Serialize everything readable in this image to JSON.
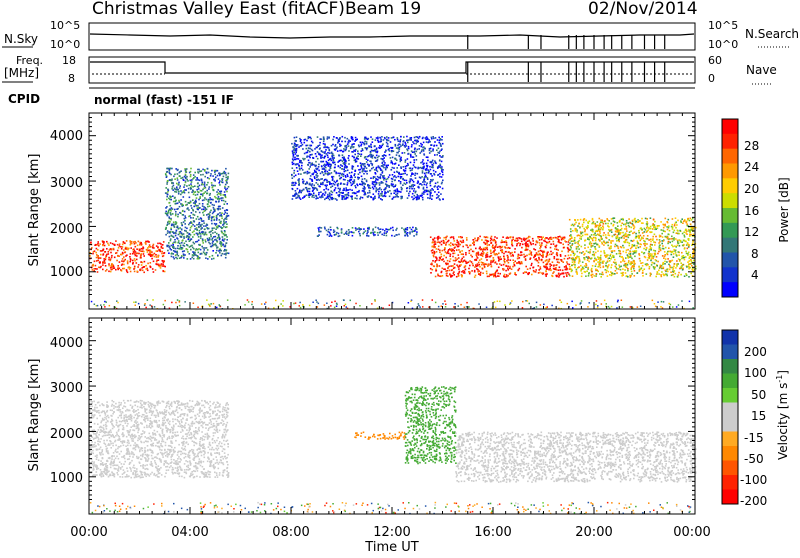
{
  "header": {
    "title": "Christmas Valley East (fitACF)",
    "beam": "Beam 19",
    "date": "02/Nov/2014"
  },
  "strip_panels": {
    "nsky_label": "N.Sky",
    "nsearch_label": "N.Search",
    "nsky_ticks": [
      "10^5",
      "10^0"
    ],
    "nsearch_ticks": [
      "10^5",
      "10^0"
    ],
    "freq_label_line1": "Freq.",
    "freq_label_line2": "[MHz]",
    "freq_ticks": [
      "18",
      "8"
    ],
    "nave_label": "Nave",
    "nave_ticks": [
      "60",
      "0"
    ],
    "cpid_label": "CPID",
    "cpid_text": "normal (fast)  -151  IF"
  },
  "panels": {
    "power_ylabel": "Slant Range [km]",
    "velocity_ylabel": "Slant Range [km]",
    "xlabel": "Time UT",
    "y_ticks": [
      "4000",
      "3000",
      "2000",
      "1000"
    ],
    "x_ticks": [
      "00:00",
      "04:00",
      "08:00",
      "12:00",
      "16:00",
      "20:00",
      "00:00"
    ]
  },
  "colorbars": {
    "power_label": "Power [dB]",
    "power_ticks": [
      "28",
      "24",
      "20",
      "16",
      "12",
      "8",
      "4"
    ],
    "power_colors": [
      "#ff0000",
      "#ff2200",
      "#ff6600",
      "#ff9900",
      "#ffcc00",
      "#ccdd00",
      "#66bb33",
      "#339955",
      "#337777",
      "#2255aa",
      "#1133cc",
      "#0000ff"
    ],
    "velocity_label_main": "Velocity [m s",
    "velocity_label_sup": "-1",
    "velocity_label_end": "]",
    "velocity_ticks": [
      "200",
      "100",
      "50",
      "15",
      "-15",
      "-50",
      "-100",
      "-200"
    ],
    "velocity_colors": [
      "#1133aa",
      "#2255aa",
      "#338844",
      "#44aa33",
      "#66cc33",
      "#cccccc",
      "#cccccc",
      "#ffaa22",
      "#ff8800",
      "#ff5500",
      "#ff2200",
      "#ff0000"
    ]
  },
  "chart_data": [
    {
      "type": "heatmap",
      "title": "Christmas Valley East (fitACF)",
      "ylabel": "Slant Range [km]",
      "colorbar_label": "Power [dB]",
      "x_range": [
        "00:00",
        "00:00"
      ],
      "ylim": [
        180,
        4500
      ],
      "colorbar_ticks": [
        28,
        24,
        20,
        16,
        12,
        8,
        4
      ],
      "regions": [
        {
          "t_start": 0.0,
          "t_end": 3.0,
          "r_start": 1000,
          "r_end": 1700,
          "power": 26
        },
        {
          "t_start": 3.0,
          "t_end": 5.5,
          "r_start": 1300,
          "r_end": 3300,
          "power": 10
        },
        {
          "t_start": 8.0,
          "t_end": 14.0,
          "r_start": 2600,
          "r_end": 4000,
          "power": 6
        },
        {
          "t_start": 9.0,
          "t_end": 13.0,
          "r_start": 1800,
          "r_end": 2000,
          "power": 8
        },
        {
          "t_start": 13.5,
          "t_end": 19.0,
          "r_start": 900,
          "r_end": 1800,
          "power": 26
        },
        {
          "t_start": 19.0,
          "t_end": 24.0,
          "r_start": 900,
          "r_end": 2200,
          "power": 18
        }
      ]
    },
    {
      "type": "heatmap",
      "ylabel": "Slant Range [km]",
      "xlabel": "Time UT",
      "colorbar_label": "Velocity [m s-1]",
      "x_range": [
        "00:00",
        "00:00"
      ],
      "ylim": [
        180,
        4500
      ],
      "colorbar_ticks": [
        200,
        100,
        50,
        15,
        -15,
        -50,
        -100,
        -200
      ],
      "regions": [
        {
          "t_start": 0.0,
          "t_end": 5.5,
          "r_start": 1000,
          "r_end": 2700,
          "velocity": 0
        },
        {
          "t_start": 10.5,
          "t_end": 12.5,
          "r_start": 1850,
          "r_end": 2000,
          "velocity": -80
        },
        {
          "t_start": 12.5,
          "t_end": 14.5,
          "r_start": 1300,
          "r_end": 3000,
          "velocity": 60
        },
        {
          "t_start": 14.5,
          "t_end": 24.0,
          "r_start": 900,
          "r_end": 2000,
          "velocity": 0
        }
      ]
    }
  ]
}
